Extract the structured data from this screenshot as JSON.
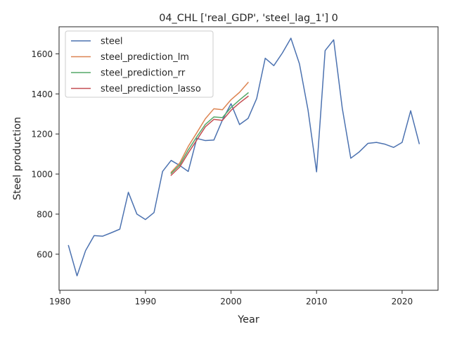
{
  "chart_data": {
    "type": "line",
    "title": "04_CHL ['real_GDP', 'steel_lag_1'] 0",
    "xlabel": "Year",
    "ylabel": "Steel production",
    "xlim": [
      1979.9,
      2024.2
    ],
    "ylim": [
      420,
      1735
    ],
    "x_ticks": [
      1980,
      1990,
      2000,
      2010,
      2020
    ],
    "y_ticks": [
      600,
      800,
      1000,
      1200,
      1400,
      1600
    ],
    "grid": false,
    "legend_position": "top-left",
    "series": [
      {
        "name": "steel",
        "color": "#4c72b0",
        "x": [
          1981,
          1982,
          1983,
          1984,
          1985,
          1986,
          1987,
          1988,
          1989,
          1990,
          1991,
          1992,
          1993,
          1994,
          1995,
          1996,
          1997,
          1998,
          1999,
          2000,
          2001,
          2002,
          2003,
          2004,
          2005,
          2006,
          2007,
          2008,
          2009,
          2010,
          2011,
          2012,
          2013,
          2014,
          2015,
          2016,
          2017,
          2018,
          2019,
          2020,
          2021,
          2022
        ],
        "values": [
          643,
          492,
          618,
          693,
          690,
          707,
          725,
          909,
          800,
          773,
          808,
          1013,
          1068,
          1043,
          1013,
          1178,
          1167,
          1170,
          1270,
          1351,
          1247,
          1278,
          1377,
          1578,
          1541,
          1604,
          1678,
          1550,
          1320,
          1011,
          1616,
          1670,
          1330,
          1079,
          1111,
          1153,
          1158,
          1149,
          1133,
          1158,
          1316,
          1152
        ]
      },
      {
        "name": "steel_prediction_lm",
        "color": "#dd8452",
        "x": [
          1993,
          1994,
          1995,
          1996,
          1997,
          1998,
          1999,
          2000,
          2001,
          2002
        ],
        "values": [
          1009,
          1055,
          1138,
          1206,
          1276,
          1326,
          1321,
          1371,
          1408,
          1457
        ]
      },
      {
        "name": "steel_prediction_rr",
        "color": "#55a868",
        "x": [
          1993,
          1994,
          1995,
          1996,
          1997,
          1998,
          1999,
          2000,
          2001,
          2002
        ],
        "values": [
          1003,
          1045,
          1120,
          1186,
          1248,
          1285,
          1282,
          1332,
          1370,
          1405
        ]
      },
      {
        "name": "steel_prediction_lasso",
        "color": "#c44e52",
        "x": [
          1993,
          1994,
          1995,
          1996,
          1997,
          1998,
          1999,
          2000,
          2001,
          2002
        ],
        "values": [
          994,
          1035,
          1105,
          1170,
          1236,
          1273,
          1268,
          1318,
          1355,
          1388
        ]
      }
    ]
  }
}
